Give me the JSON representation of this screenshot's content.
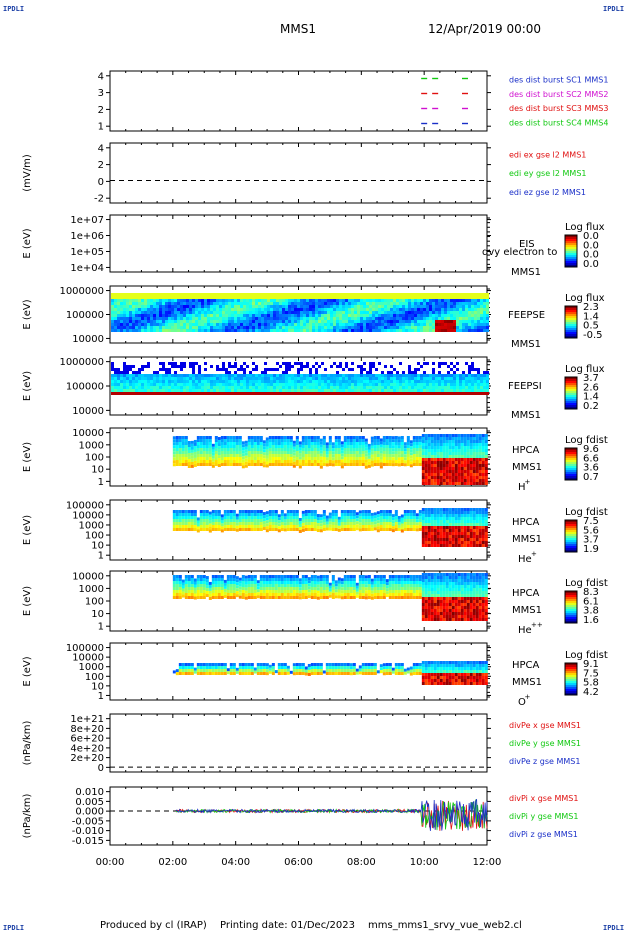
{
  "corners": {
    "tl": "IPDLI",
    "tr": "IPDLI",
    "bl": "IPDLI",
    "br": "IPDLI"
  },
  "header": {
    "title": "MMS1",
    "date": "12/Apr/2019 00:00"
  },
  "footer": {
    "producer": "Produced by cl (IRAP)",
    "printing": "Printing date: 01/Dec/2023",
    "file": "mms_mms1_srvy_vue_web2.cl"
  },
  "colors": {
    "blue": "#1a2fc8",
    "magenta": "#d010d0",
    "red": "#e01010",
    "green": "#10c810",
    "axis": "#000000"
  },
  "time_axis": {
    "ticks": [
      "00:00",
      "02:00",
      "04:00",
      "06:00",
      "08:00",
      "10:00",
      "12:00"
    ],
    "range_hours": [
      0,
      12
    ]
  },
  "chart_data": [
    {
      "id": "p1",
      "type": "scatter",
      "ylabel": "",
      "yticks": [
        "4",
        "3",
        "2",
        "1"
      ],
      "ylim": [
        0.5,
        4.5
      ],
      "legend": [
        {
          "text": "des dist burst SC1 MMS1",
          "color": "#1a2fc8"
        },
        {
          "text": "des dist burst SC2 MMS2",
          "color": "#d010d0"
        },
        {
          "text": "des dist burst SC3 MMS3",
          "color": "#e01010"
        },
        {
          "text": "des dist burst SC4 MMS4",
          "color": "#10c810"
        }
      ],
      "series": [
        {
          "level": 4,
          "color": "#10c810",
          "x": [
            10.0,
            10.35,
            11.3
          ]
        },
        {
          "level": 3,
          "color": "#e01010",
          "x": [
            10.0,
            10.35,
            11.3
          ]
        },
        {
          "level": 2,
          "color": "#d010d0",
          "x": [
            10.0,
            10.35,
            11.3
          ]
        },
        {
          "level": 1,
          "color": "#1a2fc8",
          "x": [
            10.0,
            10.35,
            11.3
          ]
        }
      ]
    },
    {
      "id": "p2",
      "type": "line",
      "ylabel": "(mV/m)",
      "yticks": [
        "4",
        "2",
        "0",
        "-2"
      ],
      "ylim": [
        -3,
        5
      ],
      "zero_line": true,
      "legend": [
        {
          "text": "edi ex gse l2 MMS1",
          "color": "#e01010"
        },
        {
          "text": "edi ey gse l2 MMS1",
          "color": "#10c810"
        },
        {
          "text": "edi ez gse l2 MMS1",
          "color": "#1a2fc8"
        }
      ]
    },
    {
      "id": "p3",
      "type": "heatmap",
      "ylabel": "E (eV)",
      "yticks": [
        "1e+07",
        "1e+06",
        "1e+05",
        "1e+04"
      ],
      "labels": [
        "EIS",
        "MMS1"
      ],
      "overlap_text": "dvy electron to",
      "cbar_title": "Log flux",
      "cbar_ticks": [
        "0.0",
        "0.0",
        "0.0",
        "0.0"
      ]
    },
    {
      "id": "p4",
      "type": "heatmap",
      "ylabel": "E (eV)",
      "yticks": [
        "1000000",
        "100000",
        "10000"
      ],
      "labels": [
        "FEEPSE",
        "MMS1"
      ],
      "cbar_title": "Log flux",
      "cbar_ticks": [
        "2.3",
        "1.4",
        "0.5",
        "-0.5"
      ]
    },
    {
      "id": "p5",
      "type": "heatmap",
      "ylabel": "E (eV)",
      "yticks": [
        "1000000",
        "100000",
        "10000"
      ],
      "labels": [
        "FEEPSI",
        "MMS1"
      ],
      "cbar_title": "Log flux",
      "cbar_ticks": [
        "3.7",
        "2.6",
        "1.4",
        "0.2"
      ]
    },
    {
      "id": "p6",
      "type": "heatmap",
      "ylabel": "E (eV)",
      "yticks": [
        "10000",
        "1000",
        "100",
        "10",
        "1"
      ],
      "labels": [
        "HPCA",
        "MMS1"
      ],
      "species": "H",
      "sup": "+",
      "cbar_title": "Log fdist",
      "cbar_ticks": [
        "9.6",
        "6.6",
        "3.6",
        "0.7"
      ]
    },
    {
      "id": "p7",
      "type": "heatmap",
      "ylabel": "E (eV)",
      "yticks": [
        "100000",
        "10000",
        "1000",
        "100",
        "10",
        "1"
      ],
      "labels": [
        "HPCA",
        "MMS1"
      ],
      "species": "He",
      "sup": "+",
      "cbar_title": "Log fdist",
      "cbar_ticks": [
        "7.5",
        "5.6",
        "3.7",
        "1.9"
      ]
    },
    {
      "id": "p8",
      "type": "heatmap",
      "ylabel": "E (eV)",
      "yticks": [
        "10000",
        "1000",
        "100",
        "10",
        "1"
      ],
      "labels": [
        "HPCA",
        "MMS1"
      ],
      "species": "He",
      "sup": "++",
      "cbar_title": "Log fdist",
      "cbar_ticks": [
        "8.3",
        "6.1",
        "3.8",
        "1.6"
      ]
    },
    {
      "id": "p9",
      "type": "heatmap",
      "ylabel": "E (eV)",
      "yticks": [
        "100000",
        "10000",
        "1000",
        "100",
        "10",
        "1"
      ],
      "labels": [
        "HPCA",
        "MMS1"
      ],
      "species": "O",
      "sup": "+",
      "cbar_title": "Log fdist",
      "cbar_ticks": [
        "9.1",
        "7.5",
        "5.8",
        "4.2"
      ]
    },
    {
      "id": "p10",
      "type": "line",
      "ylabel": "(nPa/km)",
      "yticks": [
        "1e+21",
        "8e+20",
        "6e+20",
        "4e+20",
        "2e+20",
        "0"
      ],
      "ylim": [
        -1e+20,
        1.1e+21
      ],
      "zero_line": true,
      "legend": [
        {
          "text": "divPe x gse MMS1",
          "color": "#e01010"
        },
        {
          "text": "divPe y gse MMS1",
          "color": "#10c810"
        },
        {
          "text": "divPe z gse MMS1",
          "color": "#1a2fc8"
        }
      ]
    },
    {
      "id": "p11",
      "type": "line",
      "ylabel": "(nPa/km)",
      "yticks": [
        "0.010",
        "0.005",
        "0.000",
        "-0.005",
        "-0.010",
        "-0.015"
      ],
      "ylim": [
        -0.017,
        0.012
      ],
      "zero_line": true,
      "legend": [
        {
          "text": "divPi x gse MMS1",
          "color": "#e01010"
        },
        {
          "text": "divPi y gse MMS1",
          "color": "#10c810"
        },
        {
          "text": "divPi z gse MMS1",
          "color": "#1a2fc8"
        }
      ]
    }
  ]
}
